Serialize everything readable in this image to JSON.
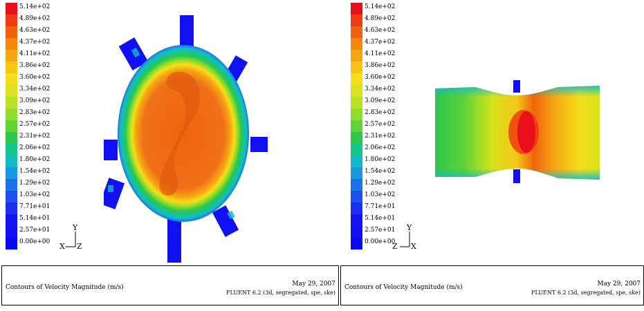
{
  "legend": {
    "colors": [
      "#e8101a",
      "#ef3a12",
      "#f0630e",
      "#f5870c",
      "#f4a512",
      "#f5c616",
      "#f5df1a",
      "#d8e21e",
      "#b7e226",
      "#8fdc2a",
      "#5fd235",
      "#2dc64f",
      "#14c58c",
      "#14bbc7",
      "#1898de",
      "#1c73e8",
      "#1e50ef",
      "#1a2ff2",
      "#1215f2",
      "#1010f2",
      "#0808f4"
    ],
    "labels": [
      "5.14e+02",
      "4.89e+02",
      "4.63e+02",
      "4.37e+02",
      "4.11e+02",
      "3.86e+02",
      "3.60e+02",
      "3.34e+02",
      "3.09e+02",
      "2.83e+02",
      "2.57e+02",
      "2.31e+02",
      "2.06e+02",
      "1.80e+02",
      "1.54e+02",
      "1.29e+02",
      "1.03e+02",
      "7.71e+01",
      "5.14e+01",
      "2.57e+01",
      "0.00e+00"
    ]
  },
  "panels": [
    {
      "axes": {
        "up": "Y",
        "left": "X",
        "out": "Z"
      },
      "caption": "Contours of Velocity Magnitude (m/s)",
      "date": "May 29, 2007",
      "version": "FLUENT 6.2 (3d, segregated, spe, ske)"
    },
    {
      "axes": {
        "up": "Y",
        "left": "Z",
        "out": "X"
      },
      "caption": "Contours of Velocity Magnitude (m/s)",
      "date": "May 29, 2007",
      "version": "FLUENT 6.2 (3d, segregated, spe, ske)"
    }
  ]
}
